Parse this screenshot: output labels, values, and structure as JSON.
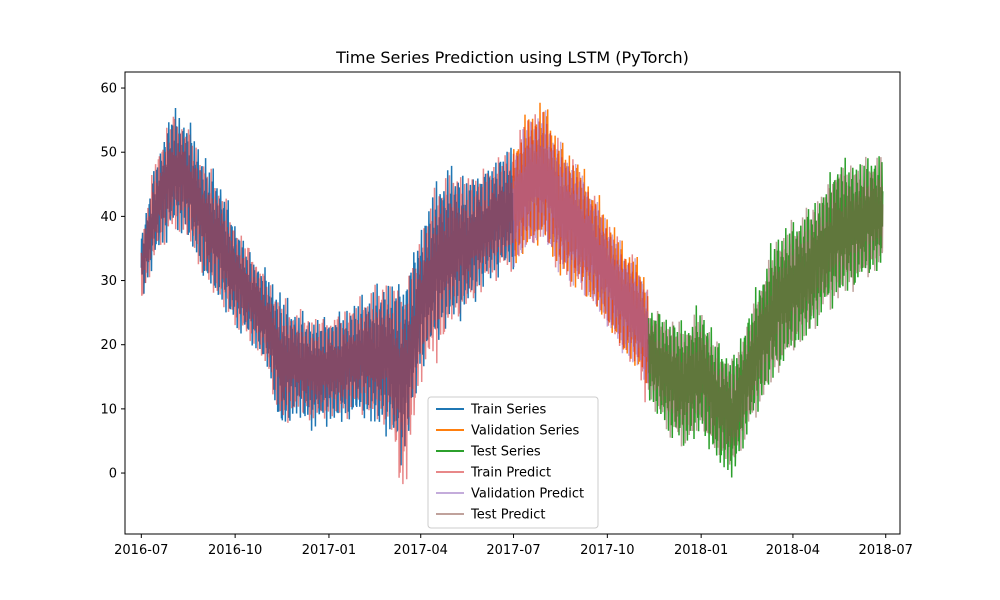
{
  "chart_data": {
    "type": "line",
    "title": "Time Series Prediction using LSTM (PyTorch)",
    "xlabel": "",
    "ylabel": "",
    "x_range": [
      "2016-06-15",
      "2018-07-15"
    ],
    "ylim": [
      -9.5,
      62.5
    ],
    "x_ticks": [
      "2016-07-01",
      "2016-10-01",
      "2017-01-01",
      "2017-04-01",
      "2017-07-01",
      "2017-10-01",
      "2018-01-01",
      "2018-04-01",
      "2018-07-01"
    ],
    "x_tick_labels": [
      "2016-07",
      "2016-10",
      "2017-01",
      "2017-04",
      "2017-07",
      "2017-10",
      "2018-01",
      "2018-04",
      "2018-07"
    ],
    "y_ticks": [
      0,
      10,
      20,
      30,
      40,
      50,
      60
    ],
    "grid": false,
    "legend_position": "lower-center",
    "series": [
      {
        "name": "Train Series",
        "color": "#1f77b4",
        "opacity": 1.0,
        "x": [
          "2016-07-01",
          "2016-07-15",
          "2016-08-01",
          "2016-08-15",
          "2016-09-01",
          "2016-09-15",
          "2016-10-01",
          "2016-10-15",
          "2016-11-01",
          "2016-11-15",
          "2016-12-01",
          "2016-12-15",
          "2017-01-01",
          "2017-01-15",
          "2017-02-01",
          "2017-02-15",
          "2017-03-01",
          "2017-03-15",
          "2017-04-01",
          "2017-04-15",
          "2017-05-01",
          "2017-05-15",
          "2017-06-01",
          "2017-06-15",
          "2017-07-01"
        ],
        "low": [
          26,
          33,
          37,
          36,
          29,
          26,
          22,
          20,
          16,
          5,
          8,
          6,
          7,
          7,
          8,
          6,
          5,
          0,
          15,
          19,
          22,
          24,
          28,
          30,
          31
        ],
        "high": [
          38,
          49,
          58,
          56,
          50,
          47,
          40,
          35,
          32,
          29,
          26,
          25,
          25,
          26,
          28,
          30,
          31,
          31,
          39,
          46,
          49,
          47,
          48,
          50,
          52
        ]
      },
      {
        "name": "Validation Series",
        "color": "#ff7f0e",
        "opacity": 1.0,
        "x": [
          "2017-07-01",
          "2017-07-15",
          "2017-08-01",
          "2017-08-15",
          "2017-09-01",
          "2017-09-15",
          "2017-10-01",
          "2017-10-15",
          "2017-11-01",
          "2017-11-10"
        ],
        "low": [
          31,
          34,
          35,
          30,
          28,
          26,
          22,
          18,
          15,
          13
        ],
        "high": [
          52,
          57,
          59,
          53,
          50,
          46,
          41,
          37,
          34,
          30
        ]
      },
      {
        "name": "Test Series",
        "color": "#2ca02c",
        "opacity": 1.0,
        "x": [
          "2017-11-10",
          "2017-12-01",
          "2017-12-15",
          "2018-01-01",
          "2018-01-15",
          "2018-02-01",
          "2018-02-15",
          "2018-03-01",
          "2018-03-15",
          "2018-04-01",
          "2018-04-15",
          "2018-05-01",
          "2018-05-15",
          "2018-06-01",
          "2018-06-15",
          "2018-06-28"
        ],
        "low": [
          11,
          5,
          3,
          5,
          1,
          -2,
          5,
          10,
          14,
          18,
          20,
          24,
          26,
          28,
          30,
          31
        ],
        "high": [
          27,
          25,
          24,
          27,
          22,
          19,
          25,
          32,
          38,
          40,
          42,
          45,
          50,
          49,
          50,
          51
        ]
      },
      {
        "name": "Train Predict",
        "color": "#d62728",
        "opacity": 0.55,
        "x": [
          "2016-07-01",
          "2016-07-15",
          "2016-08-01",
          "2016-08-15",
          "2016-09-01",
          "2016-09-15",
          "2016-10-01",
          "2016-10-15",
          "2016-11-01",
          "2016-11-15",
          "2016-12-01",
          "2016-12-15",
          "2017-01-01",
          "2017-01-15",
          "2017-02-01",
          "2017-02-15",
          "2017-03-01",
          "2017-03-15",
          "2017-04-01",
          "2017-04-15",
          "2017-05-01",
          "2017-05-15",
          "2017-06-01",
          "2017-06-15",
          "2017-07-01",
          "2017-07-15",
          "2017-08-01",
          "2017-08-15",
          "2017-09-01",
          "2017-09-15",
          "2017-10-01",
          "2017-10-15",
          "2017-11-01",
          "2017-11-10"
        ],
        "low": [
          26,
          33,
          37,
          36,
          29,
          26,
          22,
          20,
          16,
          6,
          9,
          7,
          8,
          8,
          9,
          7,
          6,
          -6,
          14,
          16,
          22,
          24,
          28,
          30,
          31,
          34,
          35,
          30,
          28,
          26,
          22,
          18,
          15,
          8
        ],
        "high": [
          37,
          50,
          57,
          55,
          49,
          46,
          39,
          36,
          31,
          28,
          26,
          25,
          25,
          26,
          28,
          30,
          31,
          30,
          38,
          46,
          48,
          47,
          48,
          50,
          52,
          57,
          57,
          52,
          49,
          45,
          40,
          36,
          33,
          29
        ]
      },
      {
        "name": "Validation Predict",
        "color": "#9467bd",
        "opacity": 0.55,
        "x": [
          "2017-07-01",
          "2017-07-15",
          "2017-08-01",
          "2017-08-15",
          "2017-09-01",
          "2017-09-15",
          "2017-10-01",
          "2017-10-15",
          "2017-11-01",
          "2017-11-10"
        ],
        "low": [
          31,
          34,
          35,
          30,
          28,
          26,
          22,
          18,
          15,
          13
        ],
        "high": [
          51,
          56,
          57,
          52,
          49,
          45,
          40,
          36,
          33,
          29
        ]
      },
      {
        "name": "Test Predict",
        "color": "#8c564b",
        "opacity": 0.55,
        "x": [
          "2017-11-10",
          "2017-12-01",
          "2017-12-15",
          "2018-01-01",
          "2018-01-15",
          "2018-02-01",
          "2018-02-15",
          "2018-03-01",
          "2018-03-15",
          "2018-04-01",
          "2018-04-15",
          "2018-05-01",
          "2018-05-15",
          "2018-06-01",
          "2018-06-15",
          "2018-06-28"
        ],
        "low": [
          11,
          5,
          3,
          6,
          2,
          0,
          5,
          10,
          14,
          18,
          20,
          24,
          26,
          28,
          30,
          31
        ],
        "high": [
          26,
          25,
          24,
          26,
          21,
          18,
          24,
          31,
          37,
          40,
          42,
          45,
          49,
          49,
          50,
          50
        ]
      }
    ]
  }
}
